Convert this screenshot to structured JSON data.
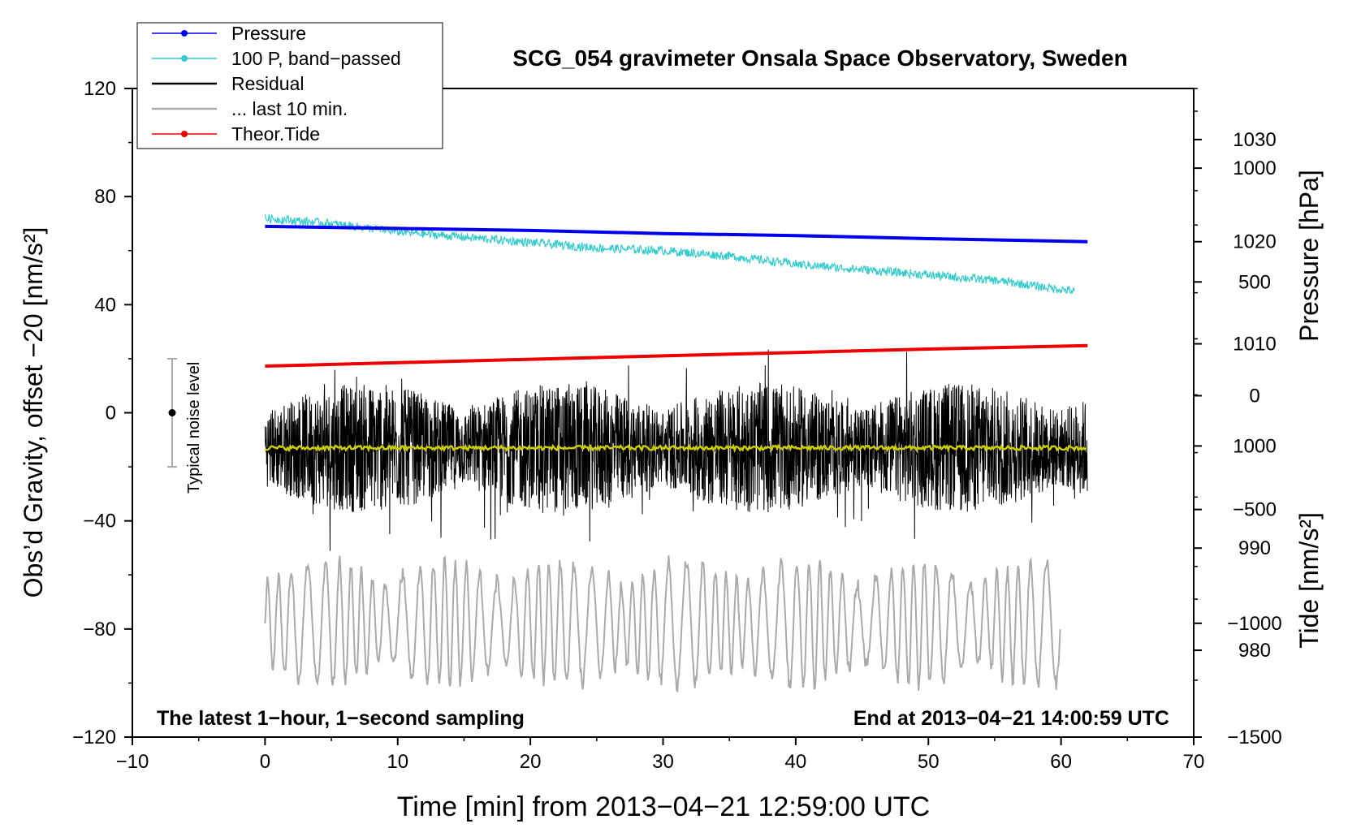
{
  "chart_data": {
    "type": "line",
    "title": "SCG_054 gravimeter Onsala Space Observatory, Sweden",
    "xlabel": "Time [min] from 2013−04−21 12:59:00 UTC",
    "ylabel_left": "Obs’d Gravity, offset −20 [nm/s²]",
    "ylabel_right_top": "Pressure [hPa]",
    "ylabel_right_bottom": "Tide [nm/s²]",
    "xlim": [
      -10,
      70
    ],
    "ylim": [
      -120,
      120
    ],
    "x_ticks": [
      -10,
      0,
      10,
      20,
      30,
      40,
      50,
      60,
      70
    ],
    "x_tick_labels": [
      "−10",
      "0",
      "10",
      "20",
      "30",
      "40",
      "50",
      "60",
      "70"
    ],
    "y_ticks": [
      -120,
      -80,
      -40,
      0,
      40,
      80,
      120
    ],
    "y_tick_labels": [
      "−120",
      "−80",
      "−40",
      "0",
      "40",
      "80",
      "120"
    ],
    "pressure_axis": {
      "ticks": [
        980,
        990,
        1000,
        1010,
        1020,
        1030
      ],
      "tick_labels": [
        "980",
        "990",
        "1000",
        "1010",
        "1020",
        "1030"
      ],
      "range": [
        971.5,
        1035
      ]
    },
    "tide_axis": {
      "ticks": [
        -1500,
        -1000,
        -500,
        0,
        500,
        1000
      ],
      "tick_labels": [
        "−1500",
        "−1000",
        "−500",
        "0",
        "500",
        "1000"
      ],
      "range": [
        -1500,
        1350
      ]
    },
    "legend": {
      "placement": "top-left",
      "entries": [
        {
          "label": "Pressure",
          "color": "#0000ee",
          "marker": true
        },
        {
          "label": "100 P, band−passed",
          "color": "#33cccc",
          "marker": true
        },
        {
          "label": "Residual",
          "color": "#000000",
          "marker": false
        },
        {
          "label": "... last 10 min.",
          "color": "#aaaaaa",
          "marker": false
        },
        {
          "label": "Theor.Tide",
          "color": "#ee0000",
          "marker": true
        }
      ]
    },
    "annotations": {
      "bottom_left": "The latest 1−hour, 1−second sampling",
      "bottom_right": "End at 2013−04−21 14:00:59 UTC",
      "noise_label": "Typical noise level"
    },
    "noise_bar": {
      "x": -7,
      "center": 0,
      "low": -20,
      "high": 20
    },
    "series": [
      {
        "name": "Pressure",
        "axis": "pressure",
        "color": "#0000ee",
        "x": [
          0,
          10,
          20,
          30,
          40,
          50,
          62
        ],
        "values": [
          1021.5,
          1021.3,
          1021.1,
          1020.8,
          1020.6,
          1020.3,
          1020.0
        ]
      },
      {
        "name": "100 P, band−passed",
        "axis": "left",
        "color": "#33cccc",
        "x": [
          0,
          5,
          10,
          15,
          20,
          25,
          30,
          35,
          40,
          45,
          50,
          55,
          61
        ],
        "values": [
          72,
          70,
          67,
          65,
          63,
          61,
          60,
          58,
          55,
          53,
          51,
          49,
          45
        ]
      },
      {
        "name": "Residual",
        "axis": "left",
        "color": "#000000",
        "x_range": [
          0,
          62
        ],
        "center": -13,
        "amplitude": 20
      },
      {
        "name": "Residual (smoothed)",
        "axis": "left",
        "color": "#cccc00",
        "x_range": [
          0,
          62
        ],
        "values_mean": -13
      },
      {
        "name": "... last 10 min.",
        "axis": "left",
        "color": "#aaaaaa",
        "x_range": [
          0,
          60
        ],
        "center": -78,
        "amplitude": 20
      },
      {
        "name": "Theor.Tide",
        "axis": "tide",
        "color": "#ee0000",
        "x": [
          0,
          10,
          20,
          30,
          40,
          50,
          62
        ],
        "values": [
          130,
          145,
          160,
          175,
          190,
          205,
          220
        ]
      }
    ]
  }
}
